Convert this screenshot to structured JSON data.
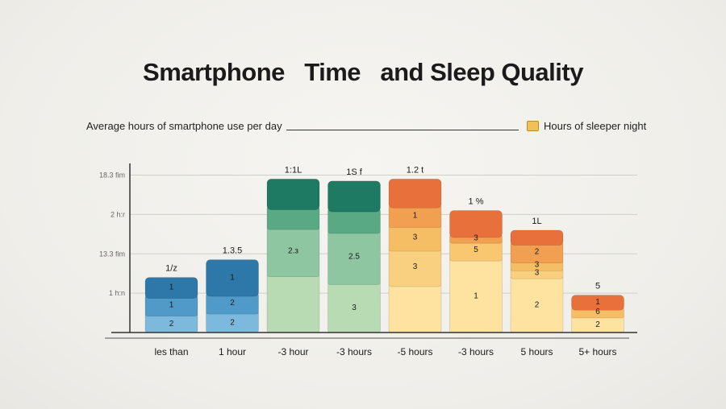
{
  "header": {
    "title": "Smartphone   Time   and Sleep Quality"
  },
  "legend": {
    "left_label": "Average hours of smartphone use per day",
    "right_label": "Hours of sleeper night",
    "swatch_color": "#f3bf57"
  },
  "chart_data": {
    "type": "bar",
    "title": "Smartphone   Time   and Sleep Quality",
    "xlabel": "Average hours of smartphone use per day",
    "ylabel": "",
    "y_ticks": [
      {
        "label": "1 h:n",
        "value": 1
      },
      {
        "label": "13.3 fim",
        "value": 2
      },
      {
        "label": "2 h:r",
        "value": 3
      },
      {
        "label": "18.3 fim",
        "value": 4
      }
    ],
    "ylim": [
      0,
      4.4
    ],
    "grid": true,
    "categories": [
      "les than",
      "1 hour",
      "-3 hour",
      "-3 hours",
      "-5 hours",
      "-3 hours",
      "5 hours",
      "5+ hours"
    ],
    "bars": [
      {
        "category": "les than",
        "top_label": "1/z",
        "total": 1.4,
        "segments": [
          {
            "value": 0.5,
            "label": "2",
            "color": "#7cb9dd"
          },
          {
            "value": 0.45,
            "label": "1",
            "color": "#4f9ac8"
          },
          {
            "value": 0.45,
            "label": "1",
            "color": "#2d78a8"
          }
        ]
      },
      {
        "category": "1 hour",
        "top_label": "1.3.5",
        "total": 1.85,
        "segments": [
          {
            "value": 0.55,
            "label": "2",
            "color": "#7cb9dd"
          },
          {
            "value": 0.45,
            "label": "2",
            "color": "#4f9ac8"
          },
          {
            "value": 0.85,
            "label": "1",
            "color": "#2d78a8"
          }
        ]
      },
      {
        "category": "-3 hour",
        "top_label": "1:1L",
        "total": 3.9,
        "segments": [
          {
            "value": 1.5,
            "label": "",
            "color": "#b9dbb3"
          },
          {
            "value": 1.2,
            "label": "2.з",
            "color": "#8fc6a2"
          },
          {
            "value": 0.5,
            "label": "",
            "color": "#5aa985"
          },
          {
            "value": 0.7,
            "label": "",
            "color": "#1e7a62"
          }
        ]
      },
      {
        "category": "-3 hours",
        "top_label": "1S f",
        "total": 3.85,
        "segments": [
          {
            "value": 1.3,
            "label": "3",
            "color": "#b9dbb3"
          },
          {
            "value": 1.3,
            "label": "2.5",
            "color": "#8fc6a2"
          },
          {
            "value": 0.55,
            "label": "",
            "color": "#5aa985"
          },
          {
            "value": 0.7,
            "label": "",
            "color": "#1e7a62"
          }
        ]
      },
      {
        "category": "-5 hours",
        "top_label": "1.2 t",
        "total": 3.9,
        "segments": [
          {
            "value": 1.25,
            "label": "",
            "color": "#fde2a0"
          },
          {
            "value": 0.9,
            "label": "3",
            "color": "#f9cf80"
          },
          {
            "value": 0.6,
            "label": "3",
            "color": "#f6be64"
          },
          {
            "value": 0.5,
            "label": "1",
            "color": "#f0a050"
          },
          {
            "value": 0.65,
            "label": "",
            "color": "#e8703a"
          }
        ]
      },
      {
        "category": "-3 hours",
        "top_label": "1 %",
        "total": 3.1,
        "segments": [
          {
            "value": 1.9,
            "label": "1",
            "color": "#fde2a0"
          },
          {
            "value": 0.45,
            "label": "5",
            "color": "#f9c770"
          },
          {
            "value": 0.15,
            "label": "3",
            "color": "#f0a050"
          },
          {
            "value": 0.6,
            "label": "",
            "color": "#e8703a"
          }
        ]
      },
      {
        "category": "5 hours",
        "top_label": "1L",
        "total": 2.6,
        "segments": [
          {
            "value": 1.45,
            "label": "2",
            "color": "#fde2a0"
          },
          {
            "value": 0.2,
            "label": "3",
            "color": "#f9cf80"
          },
          {
            "value": 0.2,
            "label": "3",
            "color": "#f6be64"
          },
          {
            "value": 0.45,
            "label": "2",
            "color": "#f0a050"
          },
          {
            "value": 0.3,
            "label": "",
            "color": "#e8703a"
          }
        ]
      },
      {
        "category": "5+ hours",
        "top_label": "5",
        "total": 0.95,
        "segments": [
          {
            "value": 0.45,
            "label": "2",
            "color": "#fde2a0"
          },
          {
            "value": 0.2,
            "label": "6",
            "color": "#f6be64"
          },
          {
            "value": 0.3,
            "label": "1",
            "color": "#e8703a"
          }
        ]
      }
    ]
  }
}
